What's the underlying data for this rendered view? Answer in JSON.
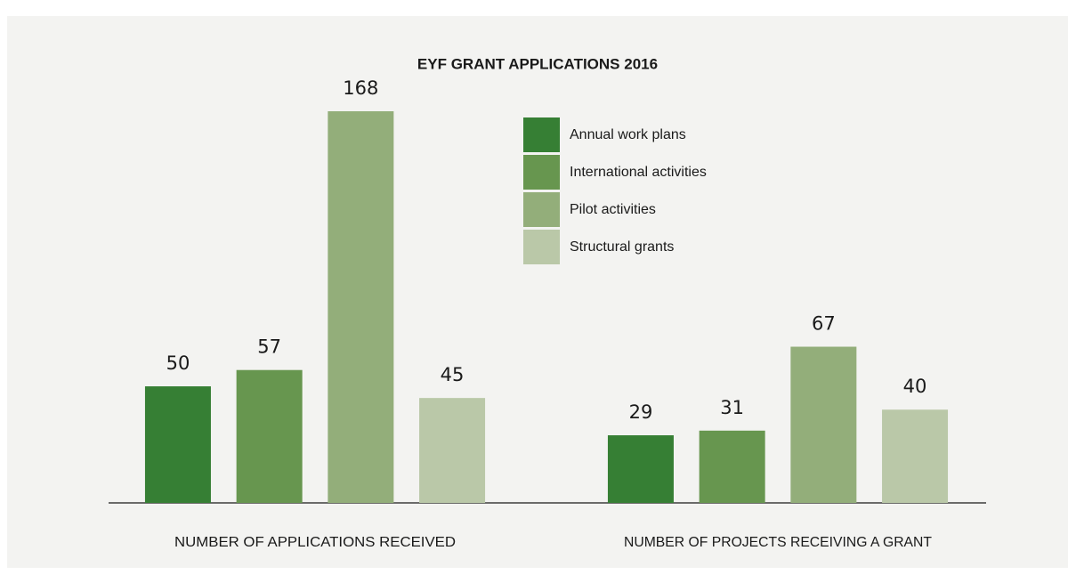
{
  "chart_data": {
    "type": "bar",
    "title": "EYF GRANT APPLICATIONS 2016",
    "categories": [
      "NUMBER OF APPLICATIONS RECEIVED",
      "NUMBER OF PROJECTS RECEIVING A GRANT"
    ],
    "series": [
      {
        "name": "Annual work plans",
        "color": "#367f34",
        "values": [
          50,
          29
        ]
      },
      {
        "name": "International activities",
        "color": "#67964f",
        "values": [
          57,
          31
        ]
      },
      {
        "name": "Pilot activities",
        "color": "#93ae7a",
        "values": [
          168,
          67
        ]
      },
      {
        "name": "Structural grants",
        "color": "#bac8a8",
        "values": [
          45,
          40
        ]
      }
    ],
    "legend": "top-center"
  }
}
